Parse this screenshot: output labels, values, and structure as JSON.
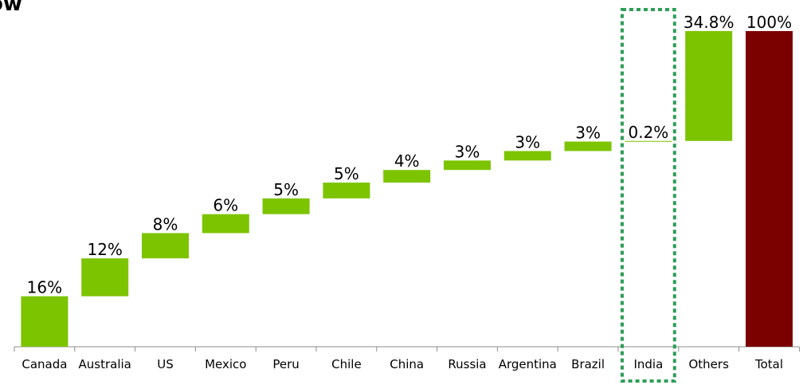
{
  "page": {
    "title_fragment": "ow"
  },
  "chart_data": {
    "type": "bar",
    "subtype": "waterfall",
    "title": "",
    "xlabel": "",
    "ylabel": "",
    "ylim": [
      0,
      100
    ],
    "categories": [
      "Canada",
      "Australia",
      "US",
      "Mexico",
      "Peru",
      "Chile",
      "China",
      "Russia",
      "Argentina",
      "Brazil",
      "India",
      "Others",
      "Total"
    ],
    "values": [
      16,
      12,
      8,
      6,
      5,
      5,
      4,
      3,
      3,
      3,
      0.2,
      34.8,
      100
    ],
    "labels": [
      "16%",
      "12%",
      "8%",
      "6%",
      "5%",
      "5%",
      "4%",
      "3%",
      "3%",
      "3%",
      "0.2%",
      "34.8%",
      "100%"
    ],
    "starts": [
      0,
      16,
      28,
      36,
      42,
      47,
      52,
      56,
      59,
      62,
      65,
      65.2,
      0
    ],
    "highlight": "India",
    "colors": {
      "increment": "#7dc400",
      "total": "#7b0000",
      "highlight_border": "#2e9e58",
      "axis": "#8c8c8c"
    }
  }
}
